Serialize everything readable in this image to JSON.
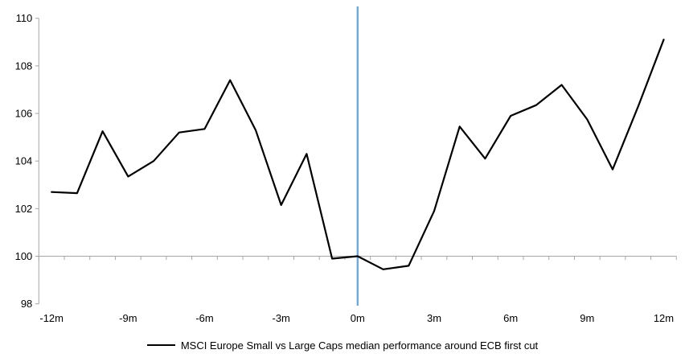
{
  "chart_data": {
    "type": "line",
    "title": "",
    "xlabel": "",
    "ylabel": "",
    "x": [
      -12,
      -11,
      -10,
      -9,
      -8,
      -7,
      -6,
      -5,
      -4,
      -3,
      -2,
      -1,
      0,
      1,
      2,
      3,
      4,
      5,
      6,
      7,
      8,
      9,
      10,
      11,
      12
    ],
    "series": [
      {
        "name": "MSCI Europe Small vs Large Caps median performance around ECB first cut",
        "color": "#000000",
        "values": [
          102.7,
          102.65,
          105.25,
          103.35,
          104.0,
          105.2,
          105.35,
          107.4,
          105.3,
          102.15,
          104.3,
          99.9,
          100.0,
          99.45,
          99.6,
          101.9,
          105.45,
          104.1,
          105.9,
          106.35,
          107.2,
          105.75,
          103.65,
          106.3,
          109.1
        ]
      }
    ],
    "x_tick_positions": [
      -12,
      -9,
      -6,
      -3,
      0,
      3,
      6,
      9,
      12
    ],
    "x_tick_labels": [
      "-12m",
      "-9m",
      "-6m",
      "-3m",
      "0m",
      "3m",
      "6m",
      "9m",
      "12m"
    ],
    "y_ticks": [
      98,
      100,
      102,
      104,
      106,
      108,
      110
    ],
    "y_tick_labels": [
      "98",
      "100",
      "102",
      "104",
      "106",
      "108",
      "110"
    ],
    "ylim": [
      98,
      110
    ],
    "xlim": [
      -12.5,
      12.5
    ],
    "x_axis_crosses_at": 100,
    "event_line_x": 0,
    "grid": "off",
    "legend_position": "bottom",
    "colors": {
      "series_line": "#000000",
      "event_line": "#6FA8DC",
      "axis": "#A6A6A6",
      "text": "#000000",
      "background": "#FFFFFF"
    }
  }
}
